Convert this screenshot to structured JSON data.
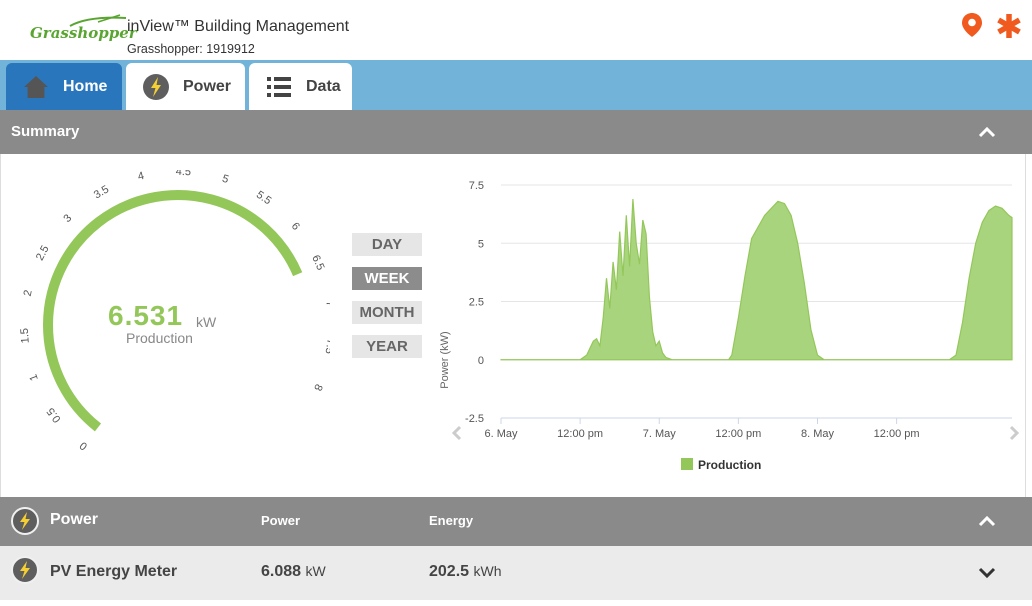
{
  "header": {
    "logo_text": "Grasshopper",
    "title": "inView™ Building Management",
    "subtitle": "Grasshopper: 1919912",
    "icons": [
      "location-pin-icon",
      "settings-asterisk-icon"
    ],
    "accent_color": "#f05a1e"
  },
  "tabs": [
    {
      "label": "Home",
      "icon": "home-icon",
      "active": true
    },
    {
      "label": "Power",
      "icon": "bolt-icon",
      "active": false
    },
    {
      "label": "Data",
      "icon": "list-icon",
      "active": false
    }
  ],
  "summary": {
    "title": "Summary",
    "gauge": {
      "value": "6.531",
      "unit": "kW",
      "label": "Production",
      "min": 0,
      "max": 8,
      "current": 6.531,
      "ticks": [
        "0",
        "0.5",
        "1",
        "1.5",
        "2",
        "2.5",
        "3",
        "3.5",
        "4",
        "4.5",
        "5",
        "5.5",
        "6",
        "6.5",
        "7",
        "7.5",
        "8"
      ],
      "color": "#94c75a"
    },
    "periods": [
      {
        "label": "DAY",
        "active": false
      },
      {
        "label": "WEEK",
        "active": true
      },
      {
        "label": "MONTH",
        "active": false
      },
      {
        "label": "YEAR",
        "active": false
      }
    ]
  },
  "chart_data": {
    "type": "area",
    "ylabel": "Power (kW)",
    "ylim": [
      -2.5,
      7.5
    ],
    "yticks": [
      "7.5",
      "5",
      "2.5",
      "0",
      "-2.5"
    ],
    "xticks": [
      "6. May",
      "12:00 pm",
      "7. May",
      "12:00 pm",
      "8. May",
      "12:00 pm"
    ],
    "legend": "bottom-center",
    "grid": true,
    "series": [
      {
        "name": "Production",
        "color": "#94c75a",
        "x_hours": [
          0,
          12,
          13,
          14,
          14.5,
          15,
          15.5,
          16,
          16.5,
          17,
          17.5,
          18,
          18.5,
          19,
          19.5,
          20,
          20.5,
          21,
          21.5,
          22,
          22.5,
          23,
          23.5,
          24,
          24.5,
          25,
          26,
          27,
          28,
          28.5,
          29,
          30,
          31,
          32,
          33,
          34,
          34.5,
          35,
          36,
          37,
          38,
          40,
          42,
          43,
          44,
          45,
          46,
          47,
          48,
          49,
          50,
          51,
          52,
          53,
          54,
          54.5,
          55,
          56,
          58,
          60,
          66,
          68,
          69,
          70,
          71,
          72,
          73,
          74,
          75,
          76,
          77,
          77.5
        ],
        "values": [
          0,
          0,
          0.2,
          0.8,
          0.9,
          0.6,
          1.8,
          3.5,
          2.2,
          4.2,
          3.0,
          5.5,
          3.6,
          6.2,
          4.0,
          6.9,
          5.0,
          4.1,
          6.0,
          5.4,
          2.7,
          1.2,
          0.6,
          0.8,
          0.3,
          0.1,
          0,
          0,
          0,
          0,
          0,
          0,
          0,
          0,
          0,
          0,
          0,
          0.2,
          1.8,
          3.6,
          5.2,
          6.2,
          6.8,
          6.7,
          6.2,
          5.0,
          3.3,
          1.3,
          0.2,
          0,
          0,
          0,
          0,
          0,
          0,
          0,
          0,
          0,
          0,
          0,
          0,
          0,
          0.2,
          1.6,
          3.5,
          5.0,
          5.9,
          6.4,
          6.6,
          6.5,
          6.2,
          6.1
        ]
      }
    ]
  },
  "power_section": {
    "title": "Power",
    "col_power": "Power",
    "col_energy": "Energy"
  },
  "meters": [
    {
      "name": "PV Energy Meter",
      "power_value": "6.088",
      "power_unit": "kW",
      "energy_value": "202.5",
      "energy_unit": "kWh"
    }
  ]
}
